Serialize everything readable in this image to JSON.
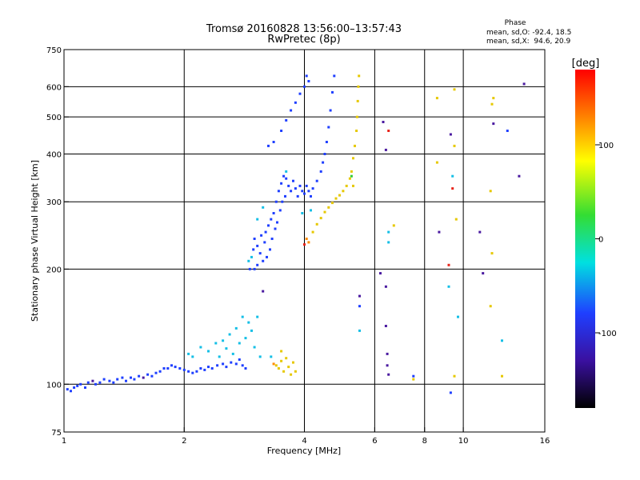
{
  "chart_data": {
    "type": "scatter",
    "title": "Tromsø 20160828 13:56:00–13:57:43",
    "subtitle": "RwPretec (8p)",
    "xlabel": "Frequency [MHz]",
    "ylabel": "Stationary phase Virtual Height [km]",
    "x_scale": "log",
    "y_scale": "log",
    "xlim": [
      1,
      16
    ],
    "ylim": [
      75,
      750
    ],
    "x_ticks": [
      1,
      2,
      4,
      6,
      8,
      10,
      16
    ],
    "x_tick_labels": [
      "1",
      "2",
      "4",
      "6",
      "8",
      "10",
      "16"
    ],
    "y_ticks": [
      75,
      100,
      200,
      300,
      400,
      500,
      600,
      750
    ],
    "y_tick_labels": [
      "75",
      "100",
      "200",
      "300",
      "400",
      "500",
      "600",
      "750"
    ],
    "grid": true,
    "stats": {
      "heading": "Phase",
      "line_o": "mean, sd,O: -92.4, 18.5",
      "line_x": "mean, sd,X:  94.6, 20.9"
    },
    "colorbar": {
      "label": "[deg]",
      "range": [
        -180,
        180
      ],
      "ticks": [
        100,
        0,
        -100
      ],
      "tick_labels": [
        "100",
        "0",
        "-100"
      ]
    },
    "point_colors": {
      "purple": "#4a1aa0",
      "blue": "#1f3fff",
      "cyan": "#14bfe6",
      "green": "#33cc33",
      "yellow": "#e6c800",
      "orange": "#ff8c00",
      "red": "#e8241a"
    },
    "series": [
      {
        "points": [
          [
            1.02,
            97,
            -95
          ],
          [
            1.04,
            96,
            -105
          ],
          [
            1.06,
            98,
            -100
          ],
          [
            1.08,
            99,
            -110
          ],
          [
            1.1,
            100,
            -95
          ],
          [
            1.13,
            98,
            -105
          ],
          [
            1.15,
            101,
            -100
          ],
          [
            1.18,
            102,
            -120
          ],
          [
            1.2,
            100,
            -95
          ],
          [
            1.23,
            101,
            -110
          ],
          [
            1.26,
            103,
            -100
          ],
          [
            1.3,
            102,
            -105
          ],
          [
            1.33,
            101,
            -95
          ],
          [
            1.36,
            103,
            -115
          ],
          [
            1.4,
            104,
            -100
          ],
          [
            1.43,
            102,
            -110
          ],
          [
            1.47,
            104,
            -95
          ],
          [
            1.5,
            103,
            -105
          ],
          [
            1.54,
            105,
            -100
          ],
          [
            1.58,
            104,
            -120
          ],
          [
            1.62,
            106,
            -100
          ],
          [
            1.66,
            105,
            -95
          ],
          [
            1.7,
            107,
            -110
          ],
          [
            1.74,
            108,
            -100
          ],
          [
            1.78,
            110,
            -95
          ],
          [
            1.82,
            110,
            -100
          ],
          [
            1.86,
            112,
            -105
          ],
          [
            1.9,
            111,
            -95
          ],
          [
            1.95,
            110,
            -100
          ],
          [
            2.0,
            109,
            -110
          ],
          [
            2.05,
            108,
            -95
          ],
          [
            2.1,
            107,
            -105
          ],
          [
            2.15,
            108,
            -100
          ],
          [
            2.2,
            110,
            -90
          ],
          [
            2.25,
            109,
            -95
          ],
          [
            2.3,
            111,
            -85
          ],
          [
            2.35,
            110,
            -100
          ],
          [
            2.42,
            112,
            -90
          ],
          [
            2.5,
            113,
            -95
          ],
          [
            2.55,
            111,
            -100
          ],
          [
            2.62,
            114,
            -90
          ],
          [
            2.7,
            113,
            -95
          ],
          [
            2.75,
            116,
            -100
          ],
          [
            2.8,
            112,
            -95
          ],
          [
            2.85,
            110,
            -90
          ]
        ]
      },
      {
        "points": [
          [
            2.05,
            120,
            -60
          ],
          [
            2.1,
            118,
            -50
          ],
          [
            2.2,
            125,
            -55
          ],
          [
            2.3,
            122,
            -45
          ],
          [
            2.4,
            128,
            -40
          ],
          [
            2.45,
            118,
            -50
          ],
          [
            2.5,
            130,
            -40
          ],
          [
            2.55,
            124,
            -45
          ],
          [
            2.6,
            135,
            -35
          ],
          [
            2.65,
            120,
            -50
          ],
          [
            2.7,
            140,
            -40
          ],
          [
            2.75,
            128,
            -45
          ],
          [
            2.8,
            150,
            -30
          ],
          [
            2.85,
            132,
            -40
          ],
          [
            2.9,
            145,
            -35
          ],
          [
            2.95,
            138,
            -45
          ],
          [
            3.0,
            125,
            -40
          ],
          [
            3.05,
            150,
            -35
          ],
          [
            3.1,
            118,
            -50
          ],
          [
            3.15,
            175,
            -120
          ]
        ]
      },
      {
        "points": [
          [
            3.4,
            112,
            90
          ],
          [
            3.45,
            110,
            95
          ],
          [
            3.5,
            115,
            85
          ],
          [
            3.55,
            108,
            100
          ],
          [
            3.6,
            117,
            90
          ],
          [
            3.65,
            111,
            95
          ],
          [
            3.7,
            106,
            100
          ],
          [
            3.75,
            114,
            90
          ],
          [
            3.8,
            108,
            85
          ],
          [
            3.3,
            118,
            -40
          ],
          [
            3.35,
            113,
            120
          ],
          [
            3.5,
            122,
            95
          ]
        ]
      },
      {
        "points": [
          [
            2.9,
            210,
            -30
          ],
          [
            2.92,
            200,
            -80
          ],
          [
            2.95,
            215,
            -50
          ],
          [
            2.98,
            225,
            -90
          ],
          [
            3.0,
            240,
            -100
          ],
          [
            3.0,
            200,
            -95
          ],
          [
            3.05,
            230,
            -105
          ],
          [
            3.05,
            205,
            -90
          ],
          [
            3.1,
            220,
            -100
          ],
          [
            3.12,
            245,
            -95
          ],
          [
            3.15,
            210,
            -110
          ],
          [
            3.18,
            235,
            -100
          ],
          [
            3.2,
            250,
            -105
          ],
          [
            3.22,
            215,
            -95
          ],
          [
            3.25,
            260,
            -100
          ],
          [
            3.28,
            225,
            -110
          ],
          [
            3.3,
            270,
            -100
          ],
          [
            3.32,
            240,
            -95
          ],
          [
            3.35,
            280,
            -105
          ],
          [
            3.38,
            255,
            -100
          ],
          [
            3.4,
            300,
            -110
          ],
          [
            3.42,
            265,
            -100
          ],
          [
            3.45,
            320,
            -95
          ],
          [
            3.48,
            285,
            -100
          ],
          [
            3.5,
            335,
            -105
          ],
          [
            3.52,
            300,
            -95
          ],
          [
            3.55,
            350,
            -100
          ],
          [
            3.58,
            310,
            -90
          ],
          [
            3.6,
            345,
            -100
          ],
          [
            3.65,
            330,
            -95
          ],
          [
            3.7,
            320,
            -100
          ],
          [
            3.75,
            340,
            -105
          ],
          [
            3.8,
            325,
            -95
          ],
          [
            3.85,
            310,
            -100
          ],
          [
            3.9,
            330,
            -95
          ],
          [
            3.95,
            320,
            -100
          ],
          [
            4.0,
            315,
            -95
          ],
          [
            4.05,
            330,
            -100
          ],
          [
            4.1,
            320,
            -105
          ],
          [
            4.15,
            310,
            -95
          ],
          [
            4.2,
            325,
            -100
          ],
          [
            4.3,
            340,
            -95
          ],
          [
            4.4,
            360,
            -100
          ],
          [
            4.45,
            380,
            -105
          ],
          [
            4.5,
            400,
            -95
          ],
          [
            4.55,
            430,
            -100
          ],
          [
            4.6,
            470,
            -95
          ],
          [
            4.65,
            520,
            -100
          ],
          [
            4.7,
            580,
            -105
          ],
          [
            4.75,
            640,
            -95
          ],
          [
            3.25,
            420,
            -110
          ],
          [
            3.35,
            430,
            -100
          ],
          [
            3.5,
            460,
            -105
          ],
          [
            3.6,
            490,
            -100
          ],
          [
            3.7,
            520,
            -95
          ],
          [
            3.8,
            545,
            -100
          ],
          [
            3.9,
            575,
            -105
          ],
          [
            4.0,
            600,
            -100
          ],
          [
            4.05,
            640,
            -95
          ],
          [
            4.1,
            620,
            -105
          ],
          [
            3.05,
            270,
            -60
          ],
          [
            3.15,
            290,
            -70
          ],
          [
            3.6,
            360,
            -40
          ],
          [
            3.95,
            280,
            -50
          ],
          [
            4.15,
            285,
            -45
          ]
        ]
      },
      {
        "points": [
          [
            4.0,
            232,
            150
          ],
          [
            4.05,
            240,
            130
          ],
          [
            4.1,
            235,
            120
          ],
          [
            4.2,
            250,
            110
          ],
          [
            4.3,
            262,
            100
          ],
          [
            4.4,
            272,
            95
          ],
          [
            4.5,
            282,
            100
          ],
          [
            4.6,
            290,
            105
          ],
          [
            4.7,
            298,
            95
          ],
          [
            4.8,
            306,
            100
          ],
          [
            4.9,
            312,
            95
          ],
          [
            5.0,
            320,
            90
          ],
          [
            5.1,
            330,
            95
          ],
          [
            5.2,
            345,
            100
          ],
          [
            5.25,
            360,
            95
          ],
          [
            5.3,
            390,
            90
          ],
          [
            5.35,
            420,
            85
          ],
          [
            5.4,
            460,
            90
          ],
          [
            5.42,
            500,
            95
          ],
          [
            5.44,
            550,
            100
          ],
          [
            5.46,
            600,
            95
          ],
          [
            5.48,
            640,
            90
          ],
          [
            5.3,
            330,
            60
          ],
          [
            5.25,
            350,
            40
          ]
        ]
      },
      {
        "points": [
          [
            6.3,
            485,
            -120
          ],
          [
            6.4,
            410,
            -130
          ],
          [
            6.5,
            460,
            150
          ],
          [
            6.2,
            195,
            -140
          ],
          [
            6.4,
            180,
            -130
          ],
          [
            6.4,
            142,
            -130
          ],
          [
            6.45,
            120,
            -140
          ],
          [
            6.45,
            112,
            -130
          ],
          [
            6.5,
            106,
            -150
          ],
          [
            5.5,
            170,
            -120
          ],
          [
            5.5,
            160,
            -110
          ],
          [
            5.5,
            138,
            -40
          ],
          [
            6.7,
            260,
            100
          ],
          [
            6.5,
            250,
            -40
          ],
          [
            6.5,
            235,
            -50
          ],
          [
            7.5,
            105,
            -80
          ],
          [
            7.5,
            103,
            100
          ],
          [
            8.6,
            560,
            100
          ],
          [
            8.6,
            380,
            100
          ],
          [
            9.2,
            205,
            150
          ],
          [
            9.2,
            180,
            -40
          ],
          [
            9.3,
            95,
            -80
          ],
          [
            9.3,
            450,
            -120
          ],
          [
            9.4,
            350,
            -40
          ],
          [
            9.4,
            325,
            150
          ],
          [
            9.6,
            270,
            100
          ],
          [
            9.5,
            590,
            100
          ],
          [
            9.5,
            420,
            100
          ],
          [
            9.5,
            105,
            100
          ],
          [
            9.7,
            150,
            -60
          ],
          [
            11.0,
            250,
            -120
          ],
          [
            11.2,
            195,
            -140
          ],
          [
            11.7,
            320,
            100
          ],
          [
            11.8,
            220,
            100
          ],
          [
            11.9,
            560,
            100
          ],
          [
            11.9,
            480,
            -120
          ],
          [
            12.5,
            130,
            -40
          ],
          [
            12.5,
            105,
            100
          ],
          [
            13.8,
            350,
            -140
          ],
          [
            14.2,
            610,
            -140
          ],
          [
            12.9,
            460,
            -100
          ],
          [
            8.7,
            250,
            -150
          ],
          [
            11.7,
            160,
            100
          ],
          [
            11.8,
            540,
            100
          ]
        ]
      }
    ]
  }
}
